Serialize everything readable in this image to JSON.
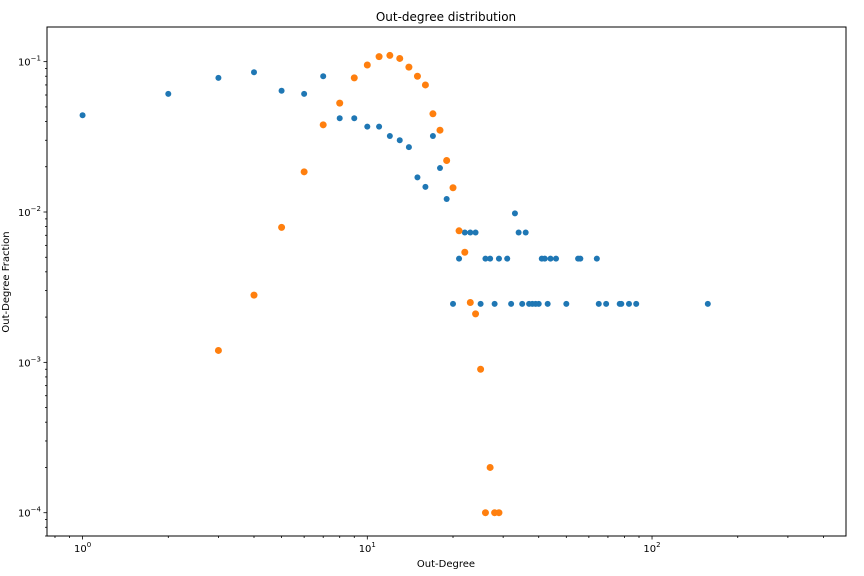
{
  "chart_data": {
    "type": "scatter",
    "title": "Out-degree distribution",
    "xlabel": "Out-Degree",
    "ylabel": "Out-Degree Fraction",
    "xscale": "log",
    "yscale": "log",
    "xlim": [
      0.75,
      480
    ],
    "ylim": [
      7e-05,
      0.17
    ],
    "grid": false,
    "x_ticks": [
      {
        "value": 1,
        "base": "10",
        "exp": "0"
      },
      {
        "value": 10,
        "base": "10",
        "exp": "1"
      },
      {
        "value": 100,
        "base": "10",
        "exp": "2"
      }
    ],
    "y_ticks": [
      {
        "value": 0.0001,
        "base": "10",
        "exp": "−4"
      },
      {
        "value": 0.001,
        "base": "10",
        "exp": "−3"
      },
      {
        "value": 0.01,
        "base": "10",
        "exp": "−2"
      },
      {
        "value": 0.1,
        "base": "10",
        "exp": "−1"
      }
    ],
    "series": [
      {
        "color": "#1f77b4",
        "points": [
          [
            1,
            0.044
          ],
          [
            2,
            0.061
          ],
          [
            3,
            0.078
          ],
          [
            4,
            0.085
          ],
          [
            5,
            0.064
          ],
          [
            6,
            0.061
          ],
          [
            7,
            0.08
          ],
          [
            8,
            0.042
          ],
          [
            9,
            0.042
          ],
          [
            10,
            0.037
          ],
          [
            11,
            0.037
          ],
          [
            12,
            0.032
          ],
          [
            13,
            0.03
          ],
          [
            14,
            0.027
          ],
          [
            15,
            0.017
          ],
          [
            16,
            0.0147
          ],
          [
            17,
            0.032
          ],
          [
            18,
            0.0196
          ],
          [
            19,
            0.0122
          ],
          [
            20,
            0.00245
          ],
          [
            21,
            0.0049
          ],
          [
            22,
            0.0073
          ],
          [
            23,
            0.0073
          ],
          [
            24,
            0.0073
          ],
          [
            25,
            0.00245
          ],
          [
            26,
            0.0049
          ],
          [
            27,
            0.0049
          ],
          [
            28,
            0.00245
          ],
          [
            29,
            0.0049
          ],
          [
            31,
            0.0049
          ],
          [
            32,
            0.00245
          ],
          [
            33,
            0.0098
          ],
          [
            34,
            0.0073
          ],
          [
            35,
            0.00245
          ],
          [
            36,
            0.0073
          ],
          [
            37,
            0.00245
          ],
          [
            38,
            0.00245
          ],
          [
            39,
            0.00245
          ],
          [
            40,
            0.00245
          ],
          [
            41,
            0.0049
          ],
          [
            42,
            0.0049
          ],
          [
            43,
            0.00245
          ],
          [
            44,
            0.0049
          ],
          [
            46,
            0.0049
          ],
          [
            50,
            0.00245
          ],
          [
            55,
            0.0049
          ],
          [
            56,
            0.0049
          ],
          [
            64,
            0.0049
          ],
          [
            65,
            0.00245
          ],
          [
            69,
            0.00245
          ],
          [
            77,
            0.00245
          ],
          [
            78,
            0.00245
          ],
          [
            83,
            0.00245
          ],
          [
            88,
            0.00245
          ],
          [
            157,
            0.00245
          ]
        ]
      },
      {
        "color": "#ff7f0e",
        "points": [
          [
            3,
            0.0012
          ],
          [
            4,
            0.0028
          ],
          [
            5,
            0.0079
          ],
          [
            6,
            0.0185
          ],
          [
            7,
            0.038
          ],
          [
            8,
            0.053
          ],
          [
            9,
            0.078
          ],
          [
            10,
            0.095
          ],
          [
            11,
            0.108
          ],
          [
            12,
            0.11
          ],
          [
            13,
            0.105
          ],
          [
            14,
            0.092
          ],
          [
            15,
            0.08
          ],
          [
            16,
            0.07
          ],
          [
            17,
            0.045
          ],
          [
            18,
            0.035
          ],
          [
            19,
            0.022
          ],
          [
            20,
            0.0145
          ],
          [
            21,
            0.0075
          ],
          [
            22,
            0.0054
          ],
          [
            23,
            0.0025
          ],
          [
            24,
            0.0021
          ],
          [
            25,
            0.0009
          ],
          [
            26,
            0.0001
          ],
          [
            27,
            0.0002
          ],
          [
            28,
            0.0001
          ],
          [
            29,
            0.0001
          ]
        ]
      }
    ]
  }
}
